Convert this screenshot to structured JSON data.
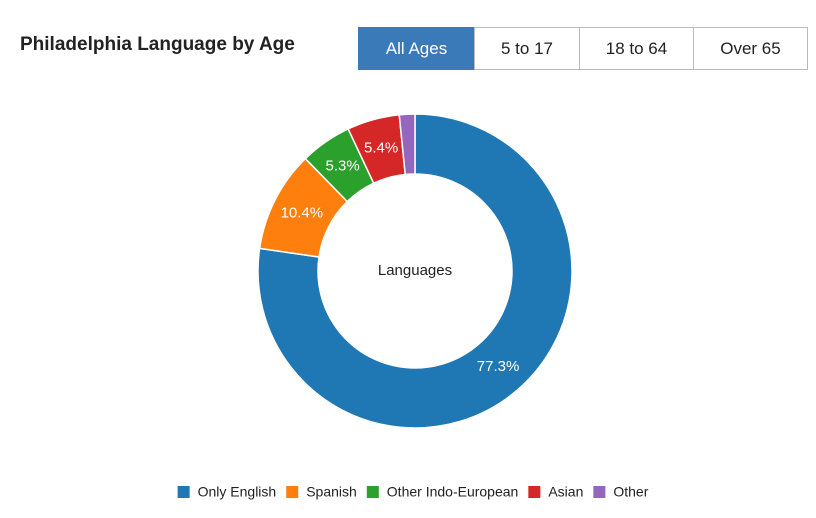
{
  "header": {
    "title": "Philadelphia Language by Age"
  },
  "tabs": [
    "All Ages",
    "5 to 17",
    "18 to 64",
    "Over 65"
  ],
  "chart_data": {
    "type": "pie",
    "donut": true,
    "center_label": "Languages",
    "series": [
      {
        "name": "Only English",
        "color": "#1f77b4",
        "values": [
          77.3
        ],
        "value_labels": [
          "77.3%"
        ]
      },
      {
        "name": "Spanish",
        "color": "#ff7f0e",
        "values": [
          10.4
        ],
        "value_labels": [
          "10.4%"
        ]
      },
      {
        "name": "Other Indo-European",
        "color": "#2ca02c",
        "values": [
          5.3
        ],
        "value_labels": [
          "5.3%"
        ]
      },
      {
        "name": "Asian",
        "color": "#d62728",
        "values": [
          5.4
        ],
        "value_labels": [
          "5.4%"
        ]
      },
      {
        "name": "Other",
        "color": "#9467bd",
        "values": [
          1.6
        ],
        "value_labels": [
          null
        ]
      }
    ],
    "legend": "bottom"
  }
}
